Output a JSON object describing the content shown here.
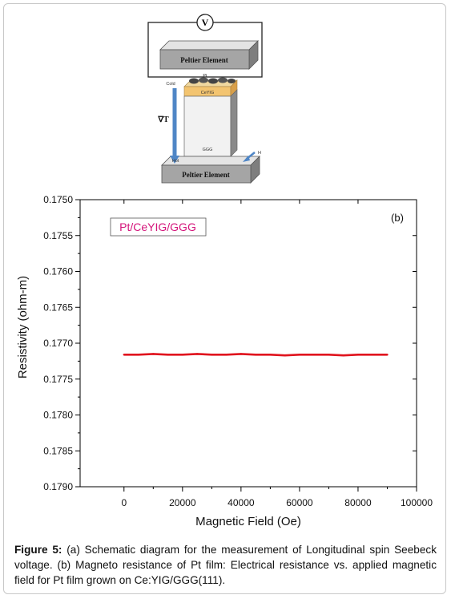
{
  "schematic": {
    "voltmeter_label": "V",
    "top_element_label": "Peltier Element",
    "bottom_element_label": "Peltier Element",
    "film_label": "Pt",
    "layer_label": "CeYIG",
    "substrate_label": "GGG",
    "cold_label": "Cold",
    "hot_label": "Hot",
    "gradient_label": "∇T",
    "field_label": "H"
  },
  "chart_data": {
    "type": "line",
    "panel_label": "(b)",
    "legend_text": "Pt/CeYIG/GGG",
    "xlabel": "Magnetic Field (Oe)",
    "ylabel": "Resistivity (ohm-m)",
    "xlim": [
      -15000,
      100000
    ],
    "ylim": [
      0.175,
      0.179
    ],
    "y_inverted": true,
    "xticks": [
      0,
      20000,
      40000,
      60000,
      80000,
      100000
    ],
    "xtick_labels": [
      "0",
      "20000",
      "40000",
      "60000",
      "80000",
      "100000"
    ],
    "yticks": [
      0.175,
      0.1755,
      0.176,
      0.1765,
      0.177,
      0.1775,
      0.178,
      0.1785,
      0.179
    ],
    "ytick_labels": [
      "0.1750",
      "0.1755",
      "0.1760",
      "0.1765",
      "0.1770",
      "0.1775",
      "0.1780",
      "0.1785",
      "0.1790"
    ],
    "series_color": "#e0141e",
    "legend_color": "#d4147a",
    "series": [
      {
        "x": [
          0,
          5000,
          10000,
          15000,
          20000,
          25000,
          30000,
          35000,
          40000,
          45000,
          50000,
          55000,
          60000,
          65000,
          70000,
          75000,
          80000,
          85000,
          90000
        ],
        "y": [
          0.17716,
          0.17716,
          0.17715,
          0.17716,
          0.17716,
          0.17715,
          0.17716,
          0.17716,
          0.17715,
          0.17716,
          0.17716,
          0.17717,
          0.17716,
          0.17716,
          0.17716,
          0.17717,
          0.17716,
          0.17716,
          0.17716
        ]
      }
    ]
  },
  "caption": {
    "label": "Figure 5:",
    "text": " (a) Schematic diagram for the measurement of Longitudinal spin Seebeck voltage. (b) Magneto resistance of Pt film: Electrical resistance vs. applied magnetic field for Pt film grown on Ce:YIG/GGG(111)."
  }
}
